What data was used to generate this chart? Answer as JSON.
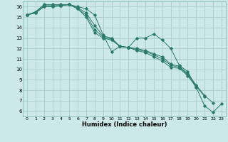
{
  "xlabel": "Humidex (Indice chaleur)",
  "bg_color": "#cce8e8",
  "grid_color": "#aacccc",
  "line_color": "#2a7a6a",
  "xlim": [
    -0.5,
    23.5
  ],
  "ylim": [
    5.5,
    16.5
  ],
  "yticks": [
    6,
    7,
    8,
    9,
    10,
    11,
    12,
    13,
    14,
    15,
    16
  ],
  "xticks": [
    0,
    1,
    2,
    3,
    4,
    5,
    6,
    7,
    8,
    9,
    10,
    11,
    12,
    13,
    14,
    15,
    16,
    17,
    18,
    19,
    20,
    21,
    22,
    23
  ],
  "series": [
    [
      15.2,
      15.5,
      16.2,
      16.2,
      16.2,
      16.2,
      16.0,
      15.8,
      15.2,
      13.3,
      11.7,
      12.2,
      12.1,
      13.0,
      13.0,
      13.4,
      12.8,
      12.0,
      10.4,
      9.8,
      8.3,
      6.5,
      5.9,
      6.7
    ],
    [
      15.2,
      15.5,
      16.1,
      16.1,
      16.1,
      16.2,
      15.9,
      15.4,
      14.2,
      13.2,
      13.0,
      12.2,
      12.1,
      12.0,
      11.8,
      11.5,
      11.2,
      10.5,
      10.3,
      9.6,
      8.5,
      7.5,
      6.8,
      null
    ],
    [
      15.2,
      15.4,
      16.0,
      16.0,
      16.1,
      16.2,
      15.8,
      15.2,
      13.8,
      13.1,
      12.9,
      12.2,
      12.1,
      11.9,
      11.7,
      11.4,
      11.0,
      10.4,
      10.2,
      9.5,
      8.4,
      7.4,
      null,
      null
    ],
    [
      15.2,
      15.4,
      16.0,
      16.0,
      16.1,
      16.2,
      15.8,
      15.0,
      13.5,
      13.0,
      12.8,
      12.2,
      12.1,
      11.8,
      11.6,
      11.2,
      10.8,
      10.2,
      10.1,
      9.4,
      8.3,
      null,
      null,
      null
    ]
  ]
}
